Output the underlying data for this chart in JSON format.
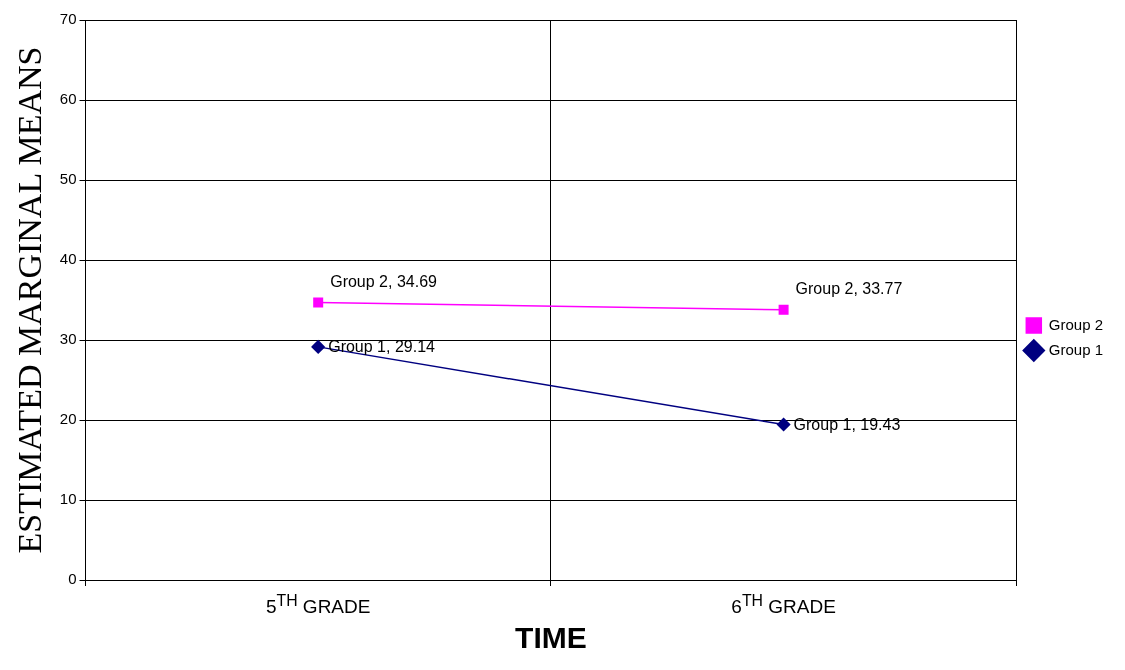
{
  "chart_data": {
    "type": "line",
    "xlabel": "TIME",
    "ylabel": "ESTIMATED MARGINAL MEANS",
    "categories": [
      "5$^{TH}$ GRADE",
      "6$^{TH}$ GRADE"
    ],
    "series": [
      {
        "name": "Group 2",
        "color": "#ff00ff",
        "marker": "square",
        "values": [
          34.69,
          33.77
        ],
        "value_labels": [
          "Group 2, 34.69",
          "Group 2, 33.77"
        ]
      },
      {
        "name": "Group 1",
        "color": "#000080",
        "marker": "diamond",
        "values": [
          29.14,
          19.43
        ],
        "value_labels": [
          "Group 1, 29.14",
          "Group 1, 19.43"
        ]
      }
    ],
    "ylim": [
      0,
      70
    ],
    "yticks": [
      0,
      10,
      20,
      30,
      40,
      50,
      60,
      70
    ],
    "grid": true,
    "legend": "right"
  }
}
